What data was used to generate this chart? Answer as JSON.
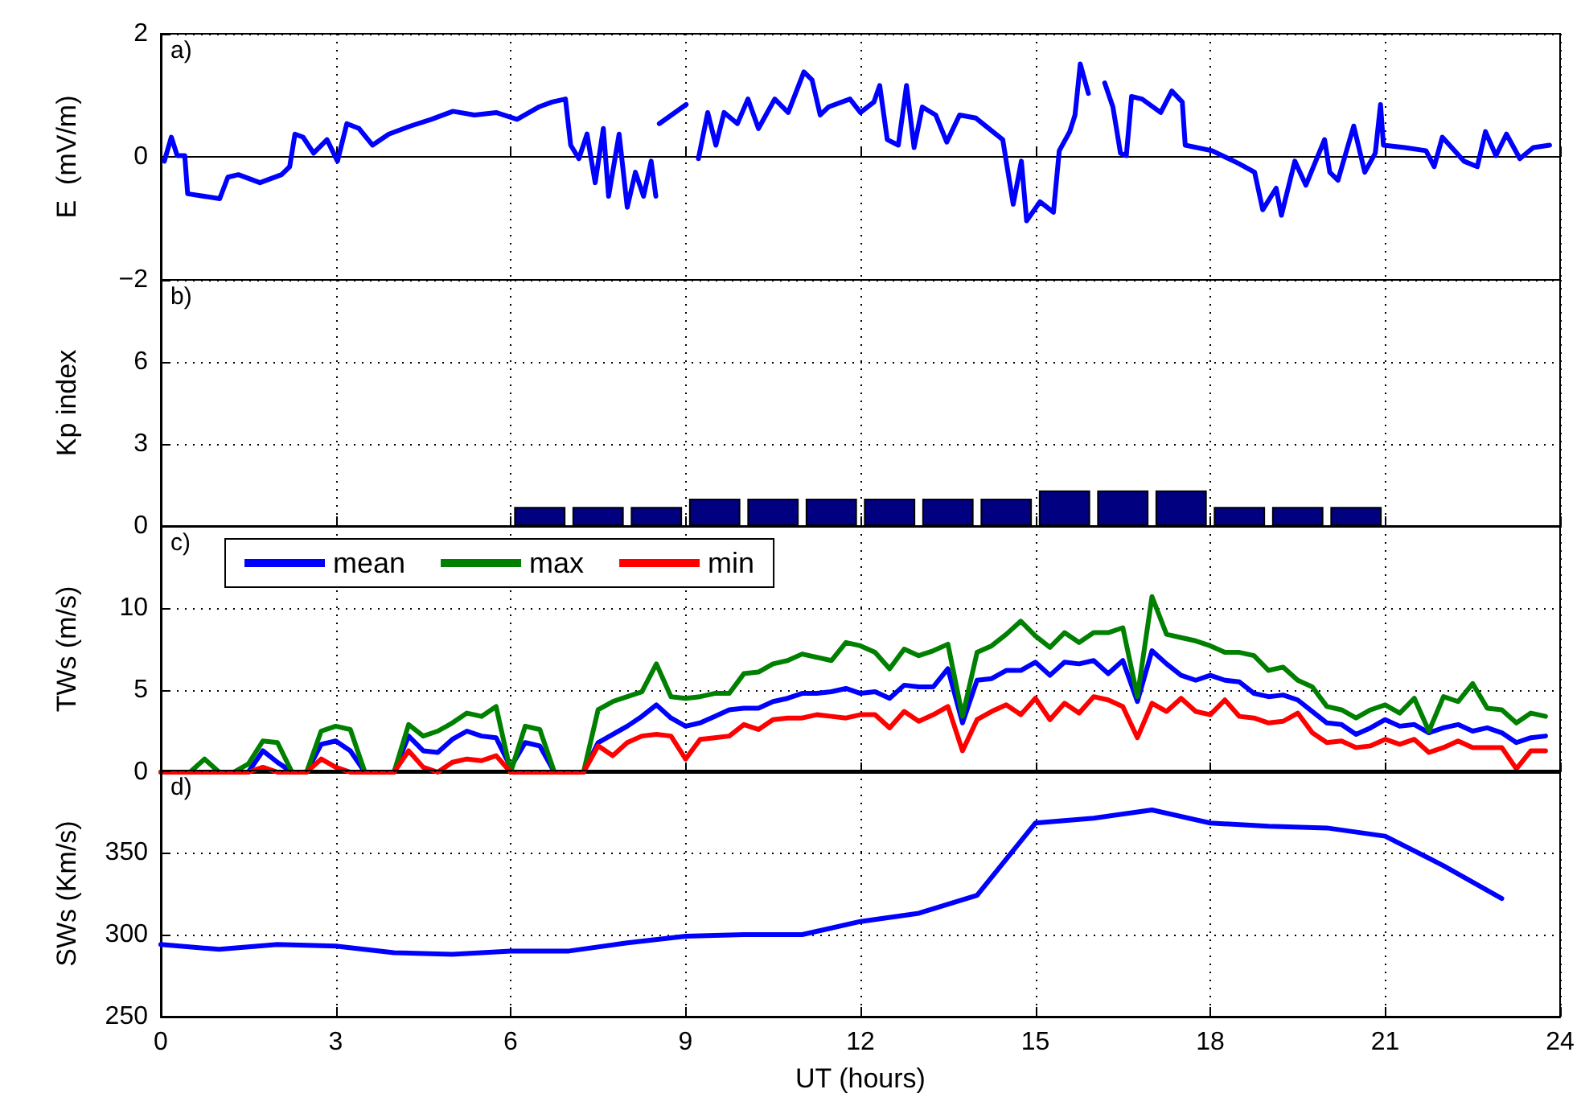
{
  "chart_data": [
    {
      "type": "line",
      "ylabel": "E  (mV/m)",
      "annotations": [
        "a)"
      ],
      "xlim": [
        0,
        24
      ],
      "xticks": [
        0,
        3,
        6,
        9,
        12,
        15,
        18,
        21,
        24
      ],
      "ylim": [
        -2,
        2
      ],
      "yticks": [
        -2,
        0,
        2
      ],
      "tick_labels": "y",
      "grid": true,
      "marker": "none",
      "line_style": "solid",
      "series": [
        {
          "color": "#0000ff",
          "x": [
            0.06,
            0.18,
            0.28,
            0.41,
            0.46,
            1.01,
            1.15,
            1.33,
            1.7,
            2.07,
            2.21,
            2.3,
            2.44,
            2.62,
            2.85,
            3.03,
            3.19,
            3.4,
            3.63,
            3.91,
            4.28,
            4.64,
            5.01,
            5.38,
            5.75,
            6.11,
            6.48,
            6.71,
            6.94,
            7.03,
            7.17,
            7.31,
            7.45,
            7.59,
            7.68,
            7.86,
            8.0,
            8.14,
            8.28,
            8.41,
            8.49,
            8.52,
            8.55,
            9.01,
            9.1,
            9.22,
            9.38,
            9.52,
            9.66,
            9.89,
            10.07,
            10.25,
            10.53,
            10.76,
            11.03,
            11.17,
            11.31,
            11.45,
            11.82,
            12.0,
            12.23,
            12.33,
            12.46,
            12.65,
            12.79,
            12.92,
            13.06,
            13.29,
            13.48,
            13.7,
            13.98,
            14.44,
            14.62,
            14.76,
            14.85,
            15.08,
            15.31,
            15.41,
            15.59,
            15.68,
            15.77,
            15.91,
            16.05,
            16.19,
            16.33,
            16.46,
            16.56,
            16.65,
            16.83,
            17.15,
            17.34,
            17.52,
            17.57,
            18.03,
            18.49,
            18.76,
            18.9,
            19.13,
            19.22,
            19.45,
            19.64,
            19.96,
            20.05,
            20.19,
            20.46,
            20.65,
            20.83,
            20.92,
            20.97,
            21.34,
            21.7,
            21.84,
            21.98,
            22.35,
            22.58,
            22.72,
            22.9,
            23.08,
            23.31,
            23.54,
            23.82
          ],
          "values": [
            -0.07,
            0.32,
            0.02,
            0.02,
            -0.6,
            -0.68,
            -0.33,
            -0.29,
            -0.42,
            -0.29,
            -0.16,
            0.37,
            0.32,
            0.06,
            0.28,
            -0.07,
            0.54,
            0.46,
            0.19,
            0.37,
            0.5,
            0.61,
            0.74,
            0.68,
            0.72,
            0.61,
            0.81,
            0.89,
            0.94,
            0.19,
            -0.03,
            0.37,
            -0.42,
            0.46,
            -0.64,
            0.37,
            -0.82,
            -0.25,
            -0.64,
            -0.07,
            -0.64,
            null,
            0.54,
            0.85,
            null,
            -0.03,
            0.72,
            0.19,
            0.72,
            0.54,
            0.94,
            0.46,
            0.94,
            0.72,
            1.38,
            1.25,
            0.68,
            0.81,
            0.94,
            0.72,
            0.89,
            1.16,
            0.28,
            0.19,
            1.16,
            0.15,
            0.81,
            0.68,
            0.24,
            0.68,
            0.63,
            0.28,
            -0.77,
            -0.07,
            -1.04,
            -0.73,
            -0.9,
            0.1,
            0.41,
            0.68,
            1.51,
            1.03,
            null,
            1.2,
            0.81,
            0.06,
            0.02,
            0.98,
            0.94,
            0.72,
            1.07,
            0.89,
            0.19,
            0.1,
            -0.11,
            -0.25,
            -0.86,
            -0.51,
            -0.95,
            -0.07,
            -0.46,
            0.28,
            -0.25,
            -0.38,
            0.5,
            -0.25,
            0.06,
            0.85,
            0.19,
            0.15,
            0.1,
            -0.16,
            0.32,
            -0.07,
            -0.16,
            0.41,
            0.02,
            0.37,
            -0.03,
            0.15,
            0.19
          ]
        }
      ]
    },
    {
      "type": "bar",
      "ylabel": "Kp index",
      "annotations": [
        "b)"
      ],
      "xlim": [
        0,
        24
      ],
      "xticks": [
        0,
        3,
        6,
        9,
        12,
        15,
        18,
        21,
        24
      ],
      "ylim": [
        0,
        9
      ],
      "yticks": [
        0,
        3,
        6,
        {
          "value": 9,
          "label": null
        }
      ],
      "tick_labels": "y",
      "grid": true,
      "x": [
        6.5,
        7.5,
        8.5,
        9.5,
        10.5,
        11.5,
        12.5,
        13.5,
        14.5,
        15.5,
        16.5,
        17.5,
        18.5,
        19.5,
        20.5
      ],
      "series": [
        {
          "color": "#000080",
          "values": [
            0.7,
            0.7,
            0.7,
            1.0,
            1.0,
            1.0,
            1.0,
            1.0,
            1.0,
            1.3,
            1.3,
            1.3,
            0.7,
            0.7,
            0.7
          ]
        }
      ]
    },
    {
      "type": "line",
      "ylabel": "TWs (m/s)",
      "annotations": [
        "c)"
      ],
      "xlim": [
        0,
        24
      ],
      "xticks": [
        0,
        3,
        6,
        9,
        12,
        15,
        18,
        21,
        24
      ],
      "ylim": [
        0,
        15
      ],
      "yticks": [
        0,
        5,
        10,
        {
          "value": 15,
          "label": null
        }
      ],
      "tick_labels": "y",
      "grid": true,
      "legend": "top left",
      "marker": "none",
      "line_style": "solid",
      "x": [
        0,
        0.25,
        0.5,
        0.75,
        1,
        1.25,
        1.5,
        1.75,
        2,
        2.25,
        2.5,
        2.75,
        3,
        3.25,
        3.5,
        3.75,
        4,
        4.25,
        4.5,
        4.75,
        5,
        5.25,
        5.5,
        5.75,
        6,
        6.25,
        6.5,
        6.75,
        7,
        7.25,
        7.5,
        7.75,
        8,
        8.25,
        8.5,
        8.75,
        9,
        9.25,
        9.5,
        9.75,
        10,
        10.25,
        10.5,
        10.75,
        11,
        11.25,
        11.5,
        11.75,
        12,
        12.25,
        12.5,
        12.75,
        13,
        13.25,
        13.5,
        13.75,
        14,
        14.25,
        14.5,
        14.75,
        15,
        15.25,
        15.5,
        15.75,
        16,
        16.25,
        16.5,
        16.75,
        17,
        17.25,
        17.5,
        17.75,
        18,
        18.25,
        18.5,
        18.75,
        19,
        19.25,
        19.5,
        19.75,
        20,
        20.25,
        20.5,
        20.75,
        21,
        21.25,
        21.5,
        21.75,
        22,
        22.25,
        22.5,
        22.75,
        23,
        23.25,
        23.5,
        23.75
      ],
      "series": [
        {
          "name": "mean",
          "color": "#0000ff",
          "values": [
            null,
            null,
            null,
            null,
            0,
            0,
            0,
            1.3,
            0.6,
            0,
            0,
            1.7,
            1.9,
            1.3,
            0,
            0,
            0,
            2.2,
            1.3,
            1.2,
            2.0,
            2.5,
            2.2,
            2.1,
            0.3,
            1.8,
            1.6,
            0,
            0,
            0,
            1.8,
            2.3,
            2.8,
            3.4,
            4.1,
            3.3,
            2.8,
            3.0,
            3.4,
            3.8,
            3.9,
            3.9,
            4.3,
            4.5,
            4.8,
            4.8,
            4.9,
            5.1,
            4.8,
            4.9,
            4.5,
            5.3,
            5.2,
            5.2,
            6.3,
            3.0,
            5.6,
            5.7,
            6.2,
            6.2,
            6.7,
            5.9,
            6.7,
            6.6,
            6.8,
            6.0,
            6.8,
            4.3,
            7.4,
            6.6,
            5.9,
            5.6,
            5.9,
            5.6,
            5.5,
            4.8,
            4.6,
            4.7,
            4.4,
            3.7,
            3.0,
            2.9,
            2.3,
            2.7,
            3.2,
            2.8,
            2.9,
            2.4,
            2.7,
            2.9,
            2.5,
            2.7,
            2.4,
            1.8,
            2.1,
            2.2
          ]
        },
        {
          "name": "max",
          "color": "#008000",
          "values": [
            0,
            0,
            0,
            0.8,
            0,
            0,
            0.5,
            1.9,
            1.8,
            0,
            0,
            2.5,
            2.8,
            2.6,
            0,
            0,
            0,
            2.9,
            2.2,
            2.5,
            3.0,
            3.6,
            3.4,
            4.0,
            0,
            2.8,
            2.6,
            0,
            0,
            0,
            3.8,
            4.3,
            4.6,
            4.9,
            6.6,
            4.6,
            4.5,
            4.6,
            4.8,
            4.8,
            6.0,
            6.1,
            6.6,
            6.8,
            7.2,
            7.0,
            6.8,
            7.9,
            7.7,
            7.3,
            6.3,
            7.5,
            7.1,
            7.4,
            7.8,
            3.4,
            7.3,
            7.7,
            8.4,
            9.2,
            8.3,
            7.6,
            8.5,
            7.9,
            8.5,
            8.5,
            8.8,
            4.6,
            10.7,
            8.4,
            8.2,
            8.0,
            7.7,
            7.3,
            7.3,
            7.1,
            6.2,
            6.4,
            5.6,
            5.2,
            4.0,
            3.8,
            3.3,
            3.8,
            4.1,
            3.6,
            4.5,
            2.5,
            4.6,
            4.3,
            5.4,
            3.9,
            3.8,
            3.0,
            3.6,
            3.4
          ]
        },
        {
          "name": "min",
          "color": "#ff0000",
          "values": [
            0,
            0,
            0,
            0,
            0,
            0,
            0,
            0.3,
            0,
            0,
            0,
            0.8,
            0.3,
            0,
            0,
            0,
            0,
            1.3,
            0.3,
            0,
            0.6,
            0.8,
            0.7,
            1.0,
            0,
            0,
            0,
            0,
            0,
            0,
            1.6,
            1.0,
            1.8,
            2.2,
            2.3,
            2.2,
            0.8,
            2.0,
            2.1,
            2.2,
            2.9,
            2.6,
            3.2,
            3.3,
            3.3,
            3.5,
            3.4,
            3.3,
            3.5,
            3.5,
            2.7,
            3.7,
            3.1,
            3.5,
            4.0,
            1.3,
            3.2,
            3.7,
            4.1,
            3.5,
            4.5,
            3.2,
            4.2,
            3.6,
            4.6,
            4.4,
            4.0,
            2.1,
            4.2,
            3.7,
            4.5,
            3.7,
            3.5,
            4.4,
            3.4,
            3.3,
            3.0,
            3.1,
            3.6,
            2.4,
            1.8,
            1.9,
            1.5,
            1.6,
            2.0,
            1.7,
            2.0,
            1.2,
            1.5,
            1.9,
            1.5,
            1.5,
            1.5,
            0.2,
            1.3,
            1.3
          ]
        }
      ]
    },
    {
      "type": "line",
      "xlabel": "UT (hours)",
      "ylabel": "SWs (Km/s)",
      "annotations": [
        "d)"
      ],
      "xlim": [
        0,
        24
      ],
      "xticks": [
        0,
        3,
        6,
        9,
        12,
        15,
        18,
        21,
        24
      ],
      "ylim": [
        250,
        400
      ],
      "yticks": [
        250,
        300,
        350,
        {
          "value": 400,
          "label": null
        }
      ],
      "grid": true,
      "marker": "none",
      "line_style": "solid",
      "x": [
        0,
        1,
        2,
        3,
        4,
        5,
        6,
        7,
        8,
        9,
        10,
        11,
        12,
        13,
        14,
        15,
        16,
        17,
        18,
        19,
        20,
        21,
        22,
        23
      ],
      "series": [
        {
          "color": "#0000ff",
          "values": [
            294,
            291,
            294,
            293,
            289,
            288,
            290,
            290,
            295,
            299,
            300,
            300,
            308,
            313,
            324,
            368,
            371,
            376,
            368,
            366,
            365,
            360,
            342,
            322
          ]
        }
      ]
    }
  ]
}
